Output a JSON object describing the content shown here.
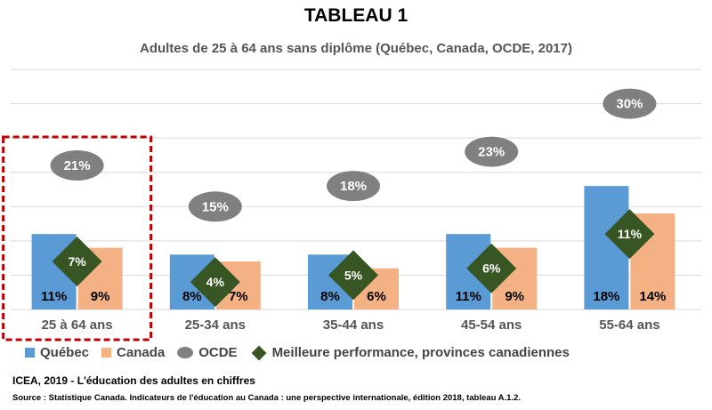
{
  "chart_data": {
    "type": "bar",
    "title": "TABLEAU 1",
    "subtitle": "Adultes de 25 à 64 ans sans diplôme (Québec, Canada, OCDE, 2017)",
    "categories": [
      "25 à 64 ans",
      "25-34 ans",
      "35-44 ans",
      "45-54 ans",
      "55-64 ans"
    ],
    "series": [
      {
        "name": "Québec",
        "type": "bar",
        "color": "#5b9bd5",
        "values": [
          11,
          8,
          8,
          11,
          18
        ],
        "labels": [
          "11%",
          "8%",
          "8%",
          "11%",
          "18%"
        ]
      },
      {
        "name": "Canada",
        "type": "bar",
        "color": "#f4b183",
        "values": [
          9,
          7,
          6,
          9,
          14
        ],
        "labels": [
          "9%",
          "7%",
          "6%",
          "9%",
          "14%"
        ]
      },
      {
        "name": "OCDE",
        "type": "marker-ellipse",
        "color": "#808080",
        "values": [
          21,
          15,
          18,
          23,
          30
        ],
        "labels": [
          "21%",
          "15%",
          "18%",
          "23%",
          "30%"
        ]
      },
      {
        "name": "Meilleure performance, provinces canadiennes",
        "type": "marker-diamond",
        "color": "#375623",
        "values": [
          7,
          4,
          5,
          6,
          11
        ],
        "labels": [
          "7%",
          "4%",
          "5%",
          "6%",
          "11%"
        ]
      }
    ],
    "ylim": [
      0,
      35
    ],
    "grid": true,
    "legend": "bottom",
    "highlight_category": "25 à 64 ans"
  },
  "footer": {
    "credit": "ICEA, 2019 - L'éducation des adultes en chiffres",
    "source": "Source : Statistique Canada.  Indicateurs de l'éducation au Canada : une perspective internationale,  édition 2018, tableau A.1.2."
  }
}
